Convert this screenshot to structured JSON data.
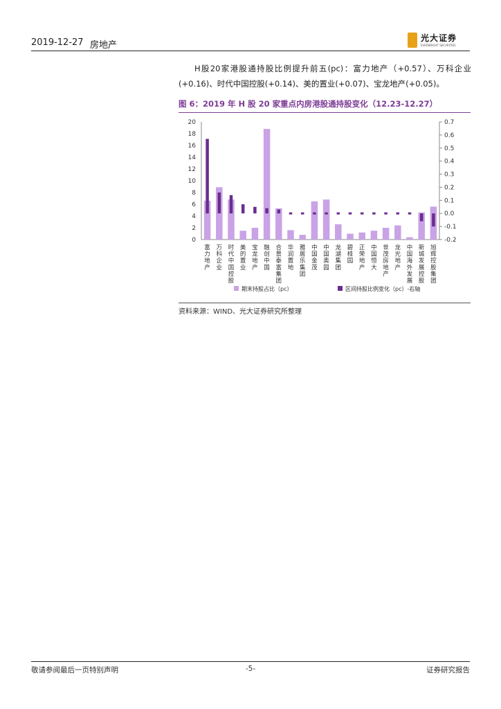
{
  "header": {
    "date": "2019-12-27",
    "sector": "房地产",
    "logo_cn": "光大证券",
    "logo_en": "EVERBRIGHT SECURITIES"
  },
  "paragraph": "H股20家港股通持股比例提升前五(pc)：富力地产（+0.57）、万科企业(+0.16)、时代中国控股(+0.14)、美的置业(+0.07)、宝龙地产(+0.05)。",
  "figure_title": "图 6：2019 年 H 股 20 家重点内房港股通持股变化（12.23-12.27）",
  "source": "资料来源：WIND、光大证券研究所整理",
  "footer": {
    "left": "敬请参阅最后一页特别声明",
    "center": "-5-",
    "right": "证券研究报告"
  },
  "colors": {
    "bar": "#c9a3e6",
    "change": "#6a2d8e",
    "accent": "#7e3d97"
  },
  "chart_data": {
    "type": "bar",
    "categories": [
      "富力地产",
      "万科企业",
      "时代中国控股",
      "美的置业",
      "宝龙地产",
      "融创中国",
      "合景泰富集团",
      "华润置地",
      "雅居乐集团",
      "中国金茂",
      "中国奥园",
      "龙湖集团",
      "碧桂园",
      "正荣地产",
      "中国恒大",
      "世茂房地产",
      "龙光地产",
      "中国海外发展",
      "新城发展控股",
      "旭辉控股集团"
    ],
    "series": [
      {
        "name": "期末持股占比（pc）",
        "axis": "left",
        "kind": "bar",
        "values": [
          6.6,
          8.9,
          6.8,
          1.5,
          2.0,
          18.8,
          5.3,
          1.6,
          0.8,
          6.5,
          6.8,
          2.6,
          1.0,
          1.2,
          1.5,
          2.0,
          2.4,
          0.4,
          4.6,
          5.6
        ]
      },
      {
        "name": "区间持股比例变化（pc）-右轴",
        "axis": "right",
        "kind": "floating",
        "values": [
          0.57,
          0.16,
          0.14,
          0.07,
          0.05,
          0.04,
          0.03,
          0.01,
          0.01,
          0.01,
          0.01,
          0.0,
          0.0,
          0.0,
          0.0,
          0.0,
          -0.01,
          -0.01,
          -0.06,
          -0.1
        ]
      }
    ],
    "y_left": {
      "min": 0,
      "max": 20,
      "ticks": [
        0,
        2,
        4,
        6,
        8,
        10,
        12,
        14,
        16,
        18,
        20
      ]
    },
    "y_right": {
      "min": -0.2,
      "max": 0.7,
      "ticks": [
        "0.7",
        "0.6",
        "0.5",
        "0.4",
        "0.3",
        "0.2",
        "0.1",
        "0.0",
        "-0.1",
        "-0.2"
      ]
    },
    "grid": false,
    "legend_position": "bottom"
  }
}
